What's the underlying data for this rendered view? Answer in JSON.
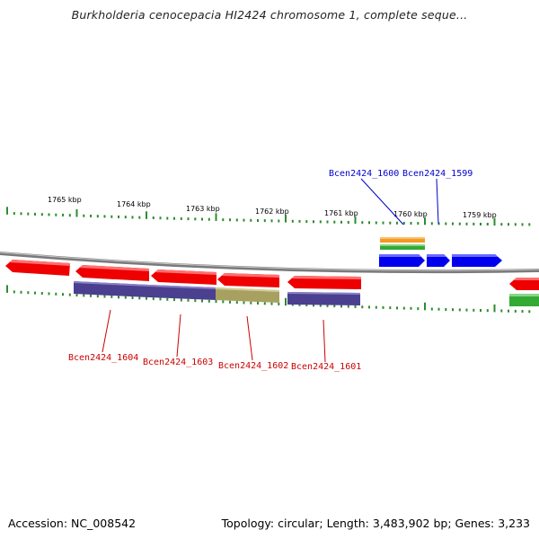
{
  "title": "Burkholderia cenocepacia HI2424 chromosome 1, complete seque...",
  "accession_text": "Accession: NC_008542",
  "stats_text": "Topology: circular; Length: 3,483,902 bp; Genes: 3,233",
  "colors": {
    "backbone": "#8a8a8a",
    "tick": "#2e8b2e",
    "forward_gene": "#0000ee",
    "reverse_gene": "#ee0000",
    "forward_label": "#0000cc",
    "reverse_label": "#cc0000",
    "cog_purple": "#4b3f8f",
    "cog_khaki": "#a8a060",
    "cog_orange": "#f0a020",
    "cog_green": "#33aa33"
  },
  "scale_labels": [
    "1765 kbp",
    "1764 kbp",
    "1763 kbp",
    "1762 kbp",
    "1761 kbp",
    "1760 kbp",
    "1759 kbp"
  ],
  "gene_labels": {
    "forward": [
      "Bcen2424_1600",
      "Bcen2424_1599"
    ],
    "reverse": [
      "Bcen2424_1604",
      "Bcen2424_1603",
      "Bcen2424_1602",
      "Bcen2424_1601"
    ]
  }
}
